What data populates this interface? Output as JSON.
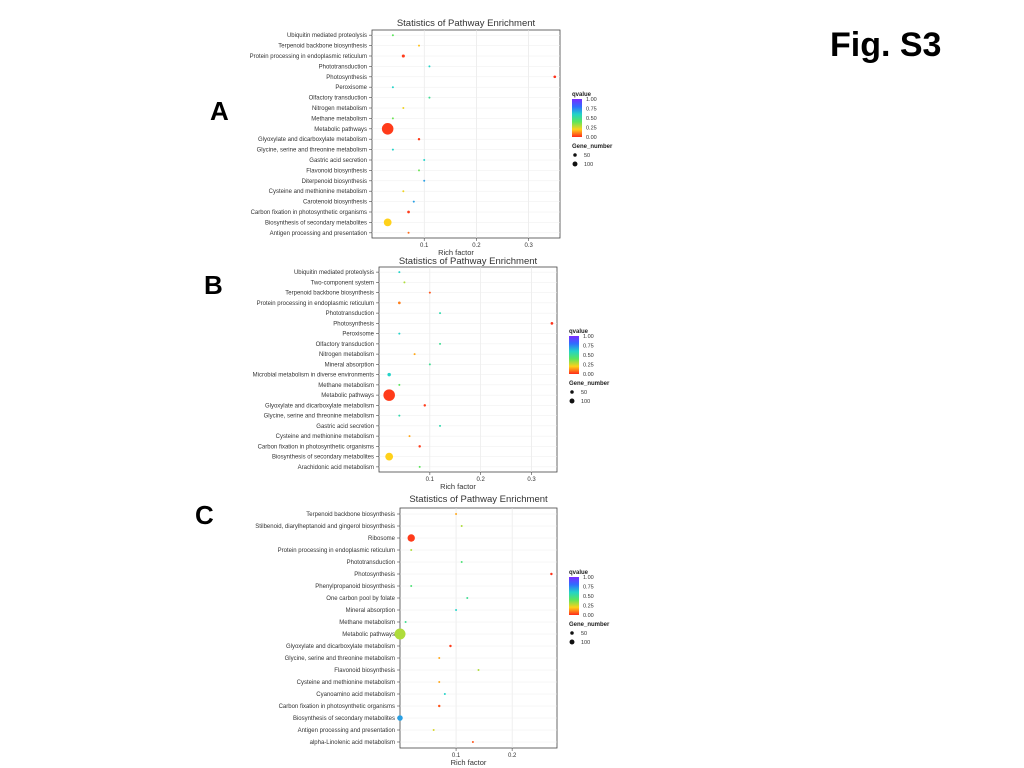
{
  "figure_label": "Fig. S3",
  "legend": {
    "qvalue_title": "qvalue",
    "qvalue_ticks": [
      "1.00",
      "0.75",
      "0.50",
      "0.25",
      "0.00"
    ],
    "gene_title": "Gene_number",
    "gene_entries": [
      {
        "label": "50",
        "value": 50
      },
      {
        "label": "100",
        "value": 100
      }
    ],
    "colorbar": [
      "#7a2bff",
      "#2f6cff",
      "#22d3c8",
      "#5ce65c",
      "#ffd11a",
      "#ff2a1a"
    ]
  },
  "chart_data": [
    {
      "id": "A",
      "type": "scatter",
      "panel_letter": "A",
      "title": "Statistics of Pathway Enrichment",
      "xlabel": "Rich factor",
      "xlim": [
        0,
        0.36
      ],
      "xticks": [
        0.1,
        0.2,
        0.3
      ],
      "xtick_labels": [
        "0.1",
        "0.2",
        "0.3"
      ],
      "grid": true,
      "legend_position": "right",
      "categories": [
        "Ubiquitin mediated proteolysis",
        "Terpenoid backbone biosynthesis",
        "Protein processing in endoplasmic reticulum",
        "Phototransduction",
        "Photosynthesis",
        "Peroxisome",
        "Olfactory transduction",
        "Nitrogen metabolism",
        "Methane metabolism",
        "Metabolic pathways",
        "Glyoxylate and dicarboxylate metabolism",
        "Glycine, serine and threonine metabolism",
        "Gastric acid secretion",
        "Flavonoid biosynthesis",
        "Diterpenoid biosynthesis",
        "Cysteine and methionine metabolism",
        "Carotenoid biosynthesis",
        "Carbon fixation in photosynthetic organisms",
        "Biosynthesis of secondary metabolites",
        "Antigen processing and presentation"
      ],
      "points": [
        {
          "rich": 0.04,
          "q": 0.4,
          "n": 2
        },
        {
          "rich": 0.09,
          "q": 0.18,
          "n": 2
        },
        {
          "rich": 0.06,
          "q": 0.02,
          "n": 8
        },
        {
          "rich": 0.11,
          "q": 0.6,
          "n": 1
        },
        {
          "rich": 0.35,
          "q": 0.01,
          "n": 6
        },
        {
          "rich": 0.04,
          "q": 0.6,
          "n": 1
        },
        {
          "rich": 0.11,
          "q": 0.5,
          "n": 1
        },
        {
          "rich": 0.06,
          "q": 0.22,
          "n": 2
        },
        {
          "rich": 0.04,
          "q": 0.38,
          "n": 1
        },
        {
          "rich": 0.03,
          "q": 0.02,
          "n": 110
        },
        {
          "rich": 0.09,
          "q": 0.02,
          "n": 5
        },
        {
          "rich": 0.04,
          "q": 0.6,
          "n": 1
        },
        {
          "rich": 0.1,
          "q": 0.6,
          "n": 1
        },
        {
          "rich": 0.09,
          "q": 0.38,
          "n": 1
        },
        {
          "rich": 0.1,
          "q": 0.7,
          "n": 1
        },
        {
          "rich": 0.06,
          "q": 0.22,
          "n": 2
        },
        {
          "rich": 0.08,
          "q": 0.7,
          "n": 1
        },
        {
          "rich": 0.07,
          "q": 0.02,
          "n": 6
        },
        {
          "rich": 0.03,
          "q": 0.2,
          "n": 50
        },
        {
          "rich": 0.07,
          "q": 0.08,
          "n": 3
        }
      ]
    },
    {
      "id": "B",
      "type": "scatter",
      "panel_letter": "B",
      "title": "Statistics of Pathway Enrichment",
      "xlabel": "Rich factor",
      "xlim": [
        0,
        0.35
      ],
      "xticks": [
        0.1,
        0.2,
        0.3
      ],
      "xtick_labels": [
        "0.1",
        "0.2",
        "0.3"
      ],
      "grid": true,
      "legend_position": "right",
      "categories": [
        "Ubiquitin mediated proteolysis",
        "Two-component system",
        "Terpenoid backbone biosynthesis",
        "Protein processing in endoplasmic reticulum",
        "Phototransduction",
        "Photosynthesis",
        "Peroxisome",
        "Olfactory transduction",
        "Nitrogen metabolism",
        "Mineral absorption",
        "Microbial metabolism in diverse environments",
        "Methane metabolism",
        "Metabolic pathways",
        "Glyoxylate and dicarboxylate metabolism",
        "Glycine, serine and threonine metabolism",
        "Gastric acid secretion",
        "Cysteine and methionine metabolism",
        "Carbon fixation in photosynthetic organisms",
        "Biosynthesis of secondary metabolites",
        "Arachidonic acid metabolism"
      ],
      "points": [
        {
          "rich": 0.04,
          "q": 0.6,
          "n": 1
        },
        {
          "rich": 0.05,
          "q": 0.3,
          "n": 1
        },
        {
          "rich": 0.1,
          "q": 0.05,
          "n": 2
        },
        {
          "rich": 0.04,
          "q": 0.1,
          "n": 6
        },
        {
          "rich": 0.12,
          "q": 0.55,
          "n": 1
        },
        {
          "rich": 0.34,
          "q": 0.01,
          "n": 6
        },
        {
          "rich": 0.04,
          "q": 0.6,
          "n": 3
        },
        {
          "rich": 0.12,
          "q": 0.5,
          "n": 1
        },
        {
          "rich": 0.07,
          "q": 0.15,
          "n": 2
        },
        {
          "rich": 0.1,
          "q": 0.5,
          "n": 1
        },
        {
          "rich": 0.02,
          "q": 0.6,
          "n": 10
        },
        {
          "rich": 0.04,
          "q": 0.4,
          "n": 2
        },
        {
          "rich": 0.02,
          "q": 0.02,
          "n": 110
        },
        {
          "rich": 0.09,
          "q": 0.02,
          "n": 5
        },
        {
          "rich": 0.04,
          "q": 0.55,
          "n": 1
        },
        {
          "rich": 0.12,
          "q": 0.55,
          "n": 1
        },
        {
          "rich": 0.06,
          "q": 0.15,
          "n": 1
        },
        {
          "rich": 0.08,
          "q": 0.02,
          "n": 5
        },
        {
          "rich": 0.02,
          "q": 0.2,
          "n": 50
        },
        {
          "rich": 0.08,
          "q": 0.4,
          "n": 1
        }
      ]
    },
    {
      "id": "C",
      "type": "scatter",
      "panel_letter": "C",
      "title": "Statistics of Pathway Enrichment",
      "xlabel": "Rich factor",
      "xlim": [
        0,
        0.28
      ],
      "xticks": [
        0.1,
        0.2
      ],
      "xtick_labels": [
        "0.1",
        "0.2"
      ],
      "grid": true,
      "legend_position": "right",
      "categories": [
        "Terpenoid backbone biosynthesis",
        "Stilbenoid, diarylheptanoid and gingerol biosynthesis",
        "Ribosome",
        "Protein processing in endoplasmic reticulum",
        "Phototransduction",
        "Photosynthesis",
        "Phenylpropanoid biosynthesis",
        "One carbon pool by folate",
        "Mineral absorption",
        "Methane metabolism",
        "Metabolic pathways",
        "Glyoxylate and dicarboxylate metabolism",
        "Glycine, serine and threonine metabolism",
        "Flavonoid biosynthesis",
        "Cysteine and methionine metabolism",
        "Cyanoamino acid metabolism",
        "Carbon fixation in photosynthetic organisms",
        "Biosynthesis of secondary metabolites",
        "Antigen processing and presentation",
        "alpha-Linolenic acid metabolism"
      ],
      "points": [
        {
          "rich": 0.1,
          "q": 0.15,
          "n": 2
        },
        {
          "rich": 0.11,
          "q": 0.3,
          "n": 1
        },
        {
          "rich": 0.02,
          "q": 0.02,
          "n": 45
        },
        {
          "rich": 0.02,
          "q": 0.3,
          "n": 2
        },
        {
          "rich": 0.11,
          "q": 0.45,
          "n": 1
        },
        {
          "rich": 0.27,
          "q": 0.01,
          "n": 5
        },
        {
          "rich": 0.02,
          "q": 0.45,
          "n": 1
        },
        {
          "rich": 0.12,
          "q": 0.5,
          "n": 1
        },
        {
          "rich": 0.1,
          "q": 0.6,
          "n": 1
        },
        {
          "rich": 0.01,
          "q": 0.5,
          "n": 1
        },
        {
          "rich": 0.0,
          "q": 0.3,
          "n": 100
        },
        {
          "rich": 0.09,
          "q": 0.02,
          "n": 5
        },
        {
          "rich": 0.07,
          "q": 0.15,
          "n": 2
        },
        {
          "rich": 0.14,
          "q": 0.3,
          "n": 1
        },
        {
          "rich": 0.07,
          "q": 0.15,
          "n": 2
        },
        {
          "rich": 0.08,
          "q": 0.6,
          "n": 1
        },
        {
          "rich": 0.07,
          "q": 0.05,
          "n": 5
        },
        {
          "rich": 0.0,
          "q": 0.7,
          "n": 25
        },
        {
          "rich": 0.06,
          "q": 0.25,
          "n": 2
        },
        {
          "rich": 0.13,
          "q": 0.05,
          "n": 3
        }
      ]
    }
  ]
}
